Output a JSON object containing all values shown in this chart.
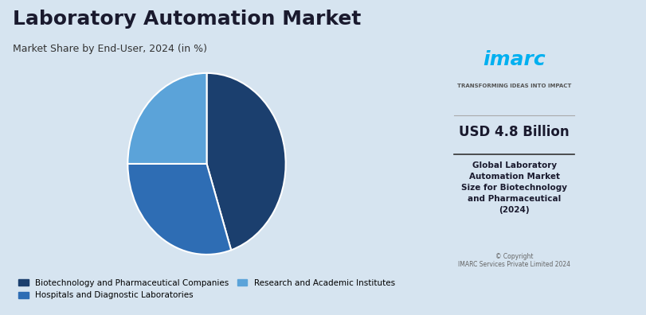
{
  "title": "Laboratory Automation Market",
  "subtitle": "Market Share by End-User, 2024 (in %)",
  "bg_color": "#d6e4f0",
  "right_panel_bg": "#dce8f5",
  "segments": [
    {
      "label": "Biotechnology and Pharmaceutical Companies",
      "value": 45,
      "color": "#1b3f6e"
    },
    {
      "label": "Hospitals and Diagnostic Laboratories",
      "value": 30,
      "color": "#2e6db4"
    },
    {
      "label": "Research and Academic Institutes",
      "value": 25,
      "color": "#5ba3d9"
    }
  ],
  "start_angle": 90,
  "right_value": "USD 4.8 Billion",
  "right_desc": "Global Laboratory\nAutomation Market\nSize for Biotechnology\nand Pharmaceutical\n(2024)",
  "copyright": "© Copyright\nIMARC Services Private Limited 2024",
  "imarc_tagline": "TRANSFORMING IDEAS INTO IMPACT"
}
